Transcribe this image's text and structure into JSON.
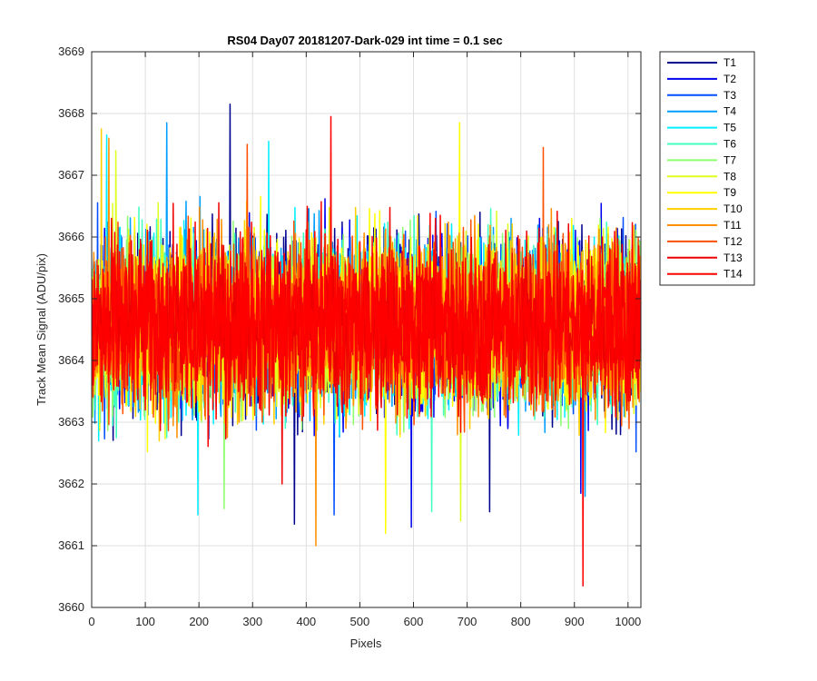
{
  "chart_data": {
    "type": "line",
    "title": "RS04 Day07 20181207-Dark-029 int time = 0.1 sec",
    "xlabel": "Pixels",
    "ylabel": "Track Mean Signal (ADU/pix)",
    "xlim": [
      0,
      1024
    ],
    "ylim": [
      3660,
      3669
    ],
    "xticks": [
      0,
      100,
      200,
      300,
      400,
      500,
      600,
      700,
      800,
      900,
      1000
    ],
    "yticks": [
      3660,
      3661,
      3662,
      3663,
      3664,
      3665,
      3666,
      3667,
      3668,
      3669
    ],
    "grid": true,
    "legend_position": "outside-top-right",
    "n_points": 1024,
    "series": [
      {
        "name": "T1",
        "color": "#00008f",
        "mean": 3664.6,
        "amplitude": 1.25,
        "spikes": [
          [
            258,
            3668.15
          ],
          [
            378,
            3661.35
          ],
          [
            742,
            3661.55
          ]
        ]
      },
      {
        "name": "T2",
        "color": "#0000ef",
        "mean": 3664.6,
        "amplitude": 1.2,
        "spikes": [
          [
            912,
            3661.85
          ],
          [
            596,
            3661.3
          ]
        ]
      },
      {
        "name": "T3",
        "color": "#004fff",
        "mean": 3664.6,
        "amplitude": 1.2,
        "spikes": [
          [
            452,
            3661.5
          ]
        ]
      },
      {
        "name": "T4",
        "color": "#009fff",
        "mean": 3664.6,
        "amplitude": 1.2,
        "spikes": [
          [
            140,
            3667.85
          ],
          [
            920,
            3661.8
          ]
        ]
      },
      {
        "name": "T5",
        "color": "#00efff",
        "mean": 3664.6,
        "amplitude": 1.2,
        "spikes": [
          [
            28,
            3667.65
          ],
          [
            330,
            3667.55
          ],
          [
            198,
            3661.5
          ]
        ]
      },
      {
        "name": "T6",
        "color": "#40ffbf",
        "mean": 3664.6,
        "amplitude": 1.2,
        "spikes": [
          [
            634,
            3661.55
          ]
        ]
      },
      {
        "name": "T7",
        "color": "#8fff6f",
        "mean": 3664.6,
        "amplitude": 1.2,
        "spikes": [
          [
            247,
            3661.6
          ]
        ]
      },
      {
        "name": "T8",
        "color": "#dfff1f",
        "mean": 3664.6,
        "amplitude": 1.2,
        "spikes": [
          [
            45,
            3667.4
          ],
          [
            688,
            3661.4
          ]
        ]
      },
      {
        "name": "T9",
        "color": "#ffff00",
        "mean": 3664.6,
        "amplitude": 1.2,
        "spikes": [
          [
            686,
            3667.85
          ],
          [
            548,
            3661.2
          ]
        ]
      },
      {
        "name": "T10",
        "color": "#ffcf00",
        "mean": 3664.6,
        "amplitude": 1.2,
        "spikes": [
          [
            18,
            3667.75
          ]
        ]
      },
      {
        "name": "T11",
        "color": "#ff8f00",
        "mean": 3664.6,
        "amplitude": 1.2,
        "spikes": [
          [
            418,
            3661.0
          ],
          [
            32,
            3667.6
          ]
        ]
      },
      {
        "name": "T12",
        "color": "#ff4f00",
        "mean": 3664.6,
        "amplitude": 1.2,
        "spikes": [
          [
            290,
            3667.5
          ],
          [
            842,
            3667.45
          ]
        ]
      },
      {
        "name": "T13",
        "color": "#ef0000",
        "mean": 3664.6,
        "amplitude": 1.2,
        "spikes": [
          [
            355,
            3662.0
          ]
        ]
      },
      {
        "name": "T14",
        "color": "#ff0000",
        "mean": 3664.6,
        "amplitude": 1.15,
        "spikes": [
          [
            446,
            3667.95
          ],
          [
            916,
            3660.35
          ]
        ]
      }
    ]
  }
}
